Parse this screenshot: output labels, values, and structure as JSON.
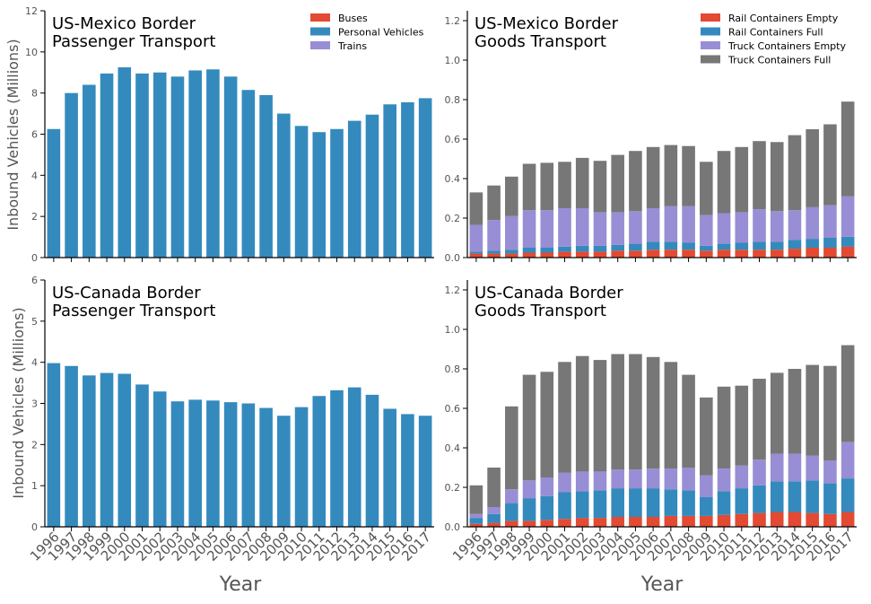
{
  "colors": {
    "buses": "#E24A33",
    "personal_vehicles": "#348ABD",
    "trains": "#988ED5",
    "rail_empty": "#E24A33",
    "rail_full": "#348ABD",
    "truck_empty": "#988ED5",
    "truck_full": "#777777",
    "axis": "#000000",
    "tick_label": "#555555"
  },
  "ylabel": "Inbound Vehicles (Millions)",
  "xlabel": "Year",
  "chart_data": [
    {
      "id": "mx-pass",
      "type": "bar",
      "stacked": true,
      "title": [
        "US-Mexico Border",
        "Passenger Transport"
      ],
      "ylabel": "Inbound Vehicles (Millions)",
      "xlabel": "",
      "ylim": [
        0,
        12
      ],
      "yticks": [
        0,
        2,
        4,
        6,
        8,
        10,
        12
      ],
      "ytick_labels": [
        "0",
        "2",
        "4",
        "6",
        "8",
        "10",
        "12"
      ],
      "show_x_labels": false,
      "legend": {
        "position": "top-right",
        "entries": [
          "Buses",
          "Personal Vehicles",
          "Trains"
        ]
      },
      "categories": [
        "1996",
        "1997",
        "1998",
        "1999",
        "2000",
        "2001",
        "2002",
        "2003",
        "2004",
        "2005",
        "2006",
        "2007",
        "2008",
        "2009",
        "2010",
        "2011",
        "2012",
        "2013",
        "2014",
        "2015",
        "2016",
        "2017"
      ],
      "series": [
        {
          "name": "Buses",
          "color_key": "buses",
          "values": [
            0,
            0,
            0,
            0,
            0,
            0,
            0,
            0,
            0,
            0,
            0,
            0,
            0,
            0,
            0,
            0,
            0,
            0,
            0,
            0,
            0,
            0
          ]
        },
        {
          "name": "Personal Vehicles",
          "color_key": "personal_vehicles",
          "values": [
            6.25,
            8.0,
            8.4,
            8.95,
            9.25,
            8.95,
            9.0,
            8.8,
            9.1,
            9.15,
            8.8,
            8.15,
            7.9,
            7.0,
            6.4,
            6.1,
            6.25,
            6.65,
            6.95,
            7.45,
            7.55,
            7.75
          ]
        },
        {
          "name": "Trains",
          "color_key": "trains",
          "values": [
            0,
            0,
            0,
            0,
            0,
            0,
            0,
            0,
            0,
            0,
            0,
            0,
            0,
            0,
            0,
            0,
            0,
            0,
            0,
            0,
            0,
            0
          ]
        }
      ]
    },
    {
      "id": "mx-goods",
      "type": "bar",
      "stacked": true,
      "title": [
        "US-Mexico Border",
        "Goods Transport"
      ],
      "ylabel": "",
      "xlabel": "",
      "ylim": [
        0,
        1.25
      ],
      "yticks": [
        0,
        0.2,
        0.4,
        0.6,
        0.8,
        1.0,
        1.2
      ],
      "ytick_labels": [
        "0.0",
        "0.2",
        "0.4",
        "0.6",
        "0.8",
        "1.0",
        "1.2"
      ],
      "show_x_labels": false,
      "legend": {
        "position": "top-right",
        "entries": [
          "Rail Containers Empty",
          "Rail Containers Full",
          "Truck Containers Empty",
          "Truck Containers Full"
        ]
      },
      "categories": [
        "1996",
        "1997",
        "1998",
        "1999",
        "2000",
        "2001",
        "2002",
        "2003",
        "2004",
        "2005",
        "2006",
        "2007",
        "2008",
        "2009",
        "2010",
        "2011",
        "2012",
        "2013",
        "2014",
        "2015",
        "2016",
        "2017"
      ],
      "series": [
        {
          "name": "Rail Containers Empty",
          "color_key": "rail_empty",
          "values": [
            0.02,
            0.02,
            0.02,
            0.025,
            0.025,
            0.03,
            0.03,
            0.03,
            0.035,
            0.035,
            0.04,
            0.04,
            0.04,
            0.035,
            0.04,
            0.04,
            0.04,
            0.04,
            0.045,
            0.05,
            0.05,
            0.055
          ]
        },
        {
          "name": "Rail Containers Full",
          "color_key": "rail_full",
          "values": [
            0.01,
            0.015,
            0.02,
            0.025,
            0.025,
            0.025,
            0.03,
            0.03,
            0.03,
            0.035,
            0.04,
            0.04,
            0.035,
            0.025,
            0.03,
            0.035,
            0.04,
            0.04,
            0.045,
            0.045,
            0.05,
            0.05
          ]
        },
        {
          "name": "Truck Containers Empty",
          "color_key": "truck_empty",
          "values": [
            0.135,
            0.155,
            0.17,
            0.19,
            0.19,
            0.195,
            0.19,
            0.17,
            0.165,
            0.165,
            0.17,
            0.18,
            0.185,
            0.155,
            0.155,
            0.155,
            0.165,
            0.155,
            0.15,
            0.16,
            0.165,
            0.205
          ]
        },
        {
          "name": "Truck Containers Full",
          "color_key": "truck_full",
          "values": [
            0.165,
            0.175,
            0.2,
            0.235,
            0.24,
            0.235,
            0.255,
            0.26,
            0.29,
            0.305,
            0.31,
            0.31,
            0.305,
            0.27,
            0.315,
            0.33,
            0.345,
            0.35,
            0.38,
            0.395,
            0.41,
            0.48
          ]
        }
      ]
    },
    {
      "id": "ca-pass",
      "type": "bar",
      "stacked": true,
      "title": [
        "US-Canada Border",
        "Passenger Transport"
      ],
      "ylabel": "Inbound Vehicles (Millions)",
      "xlabel": "Year",
      "ylim": [
        0,
        6
      ],
      "yticks": [
        0,
        1,
        2,
        3,
        4,
        5,
        6
      ],
      "ytick_labels": [
        "0",
        "1",
        "2",
        "3",
        "4",
        "5",
        "6"
      ],
      "show_x_labels": true,
      "legend": null,
      "categories": [
        "1996",
        "1997",
        "1998",
        "1999",
        "2000",
        "2001",
        "2002",
        "2003",
        "2004",
        "2005",
        "2006",
        "2007",
        "2008",
        "2009",
        "2010",
        "2011",
        "2012",
        "2013",
        "2014",
        "2015",
        "2016",
        "2017"
      ],
      "series": [
        {
          "name": "Buses",
          "color_key": "buses",
          "values": [
            0.01,
            0.01,
            0.01,
            0.01,
            0.01,
            0.01,
            0.01,
            0.01,
            0.01,
            0.01,
            0.01,
            0.01,
            0.01,
            0.01,
            0.01,
            0.01,
            0.01,
            0.01,
            0.01,
            0.01,
            0.01,
            0.01
          ]
        },
        {
          "name": "Personal Vehicles",
          "color_key": "personal_vehicles",
          "values": [
            3.97,
            3.9,
            3.67,
            3.73,
            3.71,
            3.45,
            3.28,
            3.04,
            3.08,
            3.06,
            3.02,
            2.99,
            2.88,
            2.69,
            2.9,
            3.17,
            3.31,
            3.38,
            3.2,
            2.86,
            2.73,
            2.69
          ]
        },
        {
          "name": "Trains",
          "color_key": "trains",
          "values": [
            0,
            0,
            0,
            0,
            0,
            0,
            0,
            0,
            0,
            0,
            0,
            0,
            0,
            0,
            0,
            0,
            0,
            0,
            0,
            0,
            0,
            0
          ]
        }
      ]
    },
    {
      "id": "ca-goods",
      "type": "bar",
      "stacked": true,
      "title": [
        "US-Canada Border",
        "Goods Transport"
      ],
      "ylabel": "",
      "xlabel": "Year",
      "ylim": [
        0,
        1.25
      ],
      "yticks": [
        0,
        0.2,
        0.4,
        0.6,
        0.8,
        1.0,
        1.2
      ],
      "ytick_labels": [
        "0.0",
        "0.2",
        "0.4",
        "0.6",
        "0.8",
        "1.0",
        "1.2"
      ],
      "show_x_labels": true,
      "legend": null,
      "categories": [
        "1996",
        "1997",
        "1998",
        "1999",
        "2000",
        "2001",
        "2002",
        "2003",
        "2004",
        "2005",
        "2006",
        "2007",
        "2008",
        "2009",
        "2010",
        "2011",
        "2012",
        "2013",
        "2014",
        "2015",
        "2016",
        "2017"
      ],
      "series": [
        {
          "name": "Rail Containers Empty",
          "color_key": "rail_empty",
          "values": [
            0.015,
            0.02,
            0.03,
            0.03,
            0.035,
            0.04,
            0.045,
            0.045,
            0.05,
            0.05,
            0.05,
            0.055,
            0.055,
            0.055,
            0.06,
            0.065,
            0.07,
            0.075,
            0.075,
            0.07,
            0.065,
            0.075
          ]
        },
        {
          "name": "Rail Containers Full",
          "color_key": "rail_full",
          "values": [
            0.03,
            0.045,
            0.09,
            0.115,
            0.12,
            0.135,
            0.135,
            0.14,
            0.145,
            0.145,
            0.145,
            0.135,
            0.13,
            0.095,
            0.12,
            0.13,
            0.14,
            0.155,
            0.155,
            0.165,
            0.155,
            0.17
          ]
        },
        {
          "name": "Truck Containers Empty",
          "color_key": "truck_empty",
          "values": [
            0.02,
            0.035,
            0.07,
            0.09,
            0.095,
            0.1,
            0.1,
            0.095,
            0.095,
            0.095,
            0.1,
            0.105,
            0.115,
            0.11,
            0.115,
            0.115,
            0.13,
            0.14,
            0.14,
            0.125,
            0.115,
            0.185
          ]
        },
        {
          "name": "Truck Containers Full",
          "color_key": "truck_full",
          "values": [
            0.145,
            0.2,
            0.42,
            0.535,
            0.535,
            0.56,
            0.585,
            0.565,
            0.585,
            0.585,
            0.565,
            0.54,
            0.47,
            0.395,
            0.415,
            0.405,
            0.41,
            0.41,
            0.43,
            0.46,
            0.48,
            0.49
          ]
        }
      ]
    }
  ]
}
